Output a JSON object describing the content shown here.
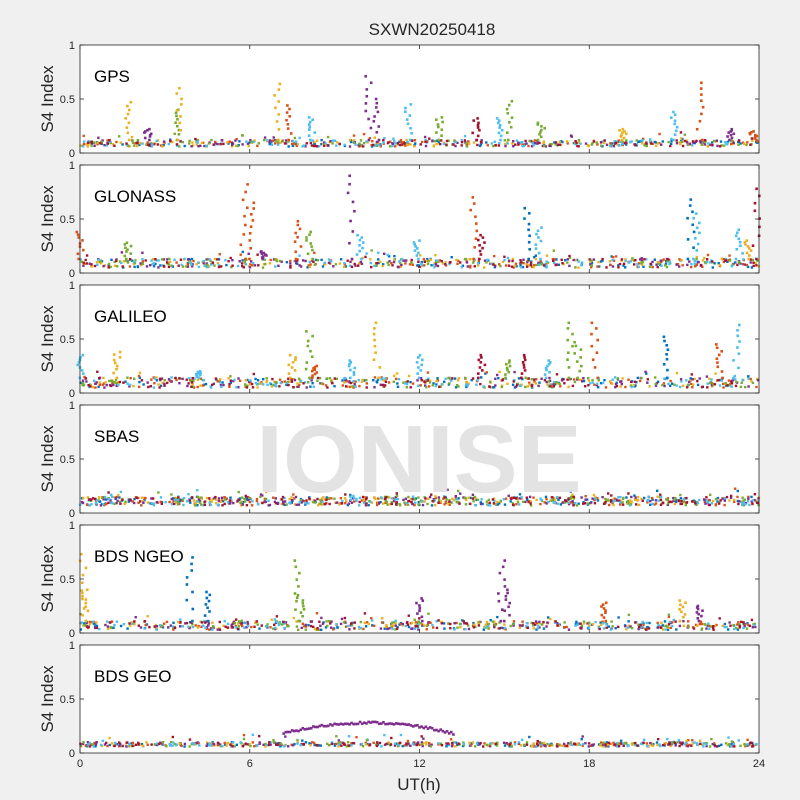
{
  "figure": {
    "title": "SXWN20250418",
    "watermark": "IONISE",
    "xlabel": "UT(h)",
    "xticks": [
      "0",
      "6",
      "12",
      "18",
      "24"
    ]
  },
  "colors": {
    "background": "#f0f0f0",
    "axes_face": "#ffffff",
    "axis_line": "#262626",
    "watermark": "#e0e0e0",
    "palette": [
      "#0072BD",
      "#D95319",
      "#EDB120",
      "#7E2F8E",
      "#77AC30",
      "#4DBEEE",
      "#A2142F"
    ]
  },
  "chart_data": [
    {
      "type": "scatter",
      "title": "GPS",
      "ylabel": "S4 Index",
      "xlim": [
        0,
        24
      ],
      "ylim": [
        0,
        1
      ],
      "yticks": [
        "0",
        "0.5",
        "1"
      ],
      "baseline": [
        0.06,
        0.12
      ],
      "spikes": [
        {
          "x": 1.7,
          "y": 0.47,
          "c": 2
        },
        {
          "x": 2.4,
          "y": 0.22,
          "c": 3
        },
        {
          "x": 3.4,
          "y": 0.4,
          "c": 4
        },
        {
          "x": 3.5,
          "y": 0.6,
          "c": 2
        },
        {
          "x": 7.0,
          "y": 0.64,
          "c": 2
        },
        {
          "x": 7.4,
          "y": 0.44,
          "c": 1
        },
        {
          "x": 8.2,
          "y": 0.33,
          "c": 5
        },
        {
          "x": 10.2,
          "y": 0.71,
          "c": 3
        },
        {
          "x": 10.5,
          "y": 0.5,
          "c": 3
        },
        {
          "x": 11.6,
          "y": 0.45,
          "c": 5
        },
        {
          "x": 12.7,
          "y": 0.33,
          "c": 4
        },
        {
          "x": 14.0,
          "y": 0.32,
          "c": 6
        },
        {
          "x": 14.8,
          "y": 0.32,
          "c": 5
        },
        {
          "x": 15.2,
          "y": 0.48,
          "c": 4
        },
        {
          "x": 16.3,
          "y": 0.28,
          "c": 4
        },
        {
          "x": 19.2,
          "y": 0.22,
          "c": 2
        },
        {
          "x": 21.0,
          "y": 0.38,
          "c": 5
        },
        {
          "x": 21.9,
          "y": 0.65,
          "c": 1
        },
        {
          "x": 23.0,
          "y": 0.22,
          "c": 3
        },
        {
          "x": 23.8,
          "y": 0.2,
          "c": 1
        }
      ]
    },
    {
      "type": "scatter",
      "title": "GLONASS",
      "ylabel": "S4 Index",
      "xlim": [
        0,
        24
      ],
      "ylim": [
        0,
        1
      ],
      "yticks": [
        "0",
        "0.5",
        "1"
      ],
      "baseline": [
        0.05,
        0.13
      ],
      "spikes": [
        {
          "x": 0.0,
          "y": 0.38,
          "c": 1
        },
        {
          "x": 1.7,
          "y": 0.28,
          "c": 4
        },
        {
          "x": 5.8,
          "y": 0.82,
          "c": 1
        },
        {
          "x": 6.1,
          "y": 0.65,
          "c": 1
        },
        {
          "x": 6.5,
          "y": 0.2,
          "c": 3
        },
        {
          "x": 7.7,
          "y": 0.48,
          "c": 1
        },
        {
          "x": 8.1,
          "y": 0.38,
          "c": 4
        },
        {
          "x": 9.6,
          "y": 0.9,
          "c": 3
        },
        {
          "x": 9.9,
          "y": 0.35,
          "c": 5
        },
        {
          "x": 11.9,
          "y": 0.3,
          "c": 5
        },
        {
          "x": 13.9,
          "y": 0.7,
          "c": 1
        },
        {
          "x": 14.2,
          "y": 0.35,
          "c": 6
        },
        {
          "x": 15.8,
          "y": 0.6,
          "c": 0
        },
        {
          "x": 16.2,
          "y": 0.42,
          "c": 5
        },
        {
          "x": 21.6,
          "y": 0.68,
          "c": 0
        },
        {
          "x": 21.8,
          "y": 0.55,
          "c": 5
        },
        {
          "x": 23.3,
          "y": 0.4,
          "c": 5
        },
        {
          "x": 23.6,
          "y": 0.3,
          "c": 2
        },
        {
          "x": 23.9,
          "y": 0.78,
          "c": 6
        }
      ]
    },
    {
      "type": "scatter",
      "title": "GALILEO",
      "ylabel": "S4 Index",
      "xlim": [
        0,
        24
      ],
      "ylim": [
        0,
        1
      ],
      "yticks": [
        "0",
        "0.5",
        "1"
      ],
      "baseline": [
        0.05,
        0.14
      ],
      "spikes": [
        {
          "x": 0.0,
          "y": 0.35,
          "c": 5
        },
        {
          "x": 1.3,
          "y": 0.38,
          "c": 2
        },
        {
          "x": 4.2,
          "y": 0.2,
          "c": 5
        },
        {
          "x": 7.5,
          "y": 0.35,
          "c": 2
        },
        {
          "x": 8.1,
          "y": 0.57,
          "c": 4
        },
        {
          "x": 8.3,
          "y": 0.25,
          "c": 1
        },
        {
          "x": 9.6,
          "y": 0.3,
          "c": 5
        },
        {
          "x": 10.5,
          "y": 0.65,
          "c": 2
        },
        {
          "x": 12.0,
          "y": 0.35,
          "c": 5
        },
        {
          "x": 14.2,
          "y": 0.35,
          "c": 6
        },
        {
          "x": 15.1,
          "y": 0.3,
          "c": 4
        },
        {
          "x": 15.7,
          "y": 0.35,
          "c": 6
        },
        {
          "x": 16.5,
          "y": 0.3,
          "c": 5
        },
        {
          "x": 17.3,
          "y": 0.65,
          "c": 4
        },
        {
          "x": 17.6,
          "y": 0.47,
          "c": 4
        },
        {
          "x": 18.2,
          "y": 0.65,
          "c": 1
        },
        {
          "x": 20.7,
          "y": 0.52,
          "c": 0
        },
        {
          "x": 22.6,
          "y": 0.45,
          "c": 1
        },
        {
          "x": 23.2,
          "y": 0.63,
          "c": 5
        }
      ]
    },
    {
      "type": "scatter",
      "title": "SBAS",
      "ylabel": "S4 Index",
      "xlim": [
        0,
        24
      ],
      "ylim": [
        0,
        1
      ],
      "yticks": [
        "0",
        "0.5",
        "1"
      ],
      "baseline": [
        0.07,
        0.15
      ],
      "spikes": []
    },
    {
      "type": "scatter",
      "title": "BDS NGEO",
      "ylabel": "S4 Index",
      "xlim": [
        0,
        24
      ],
      "ylim": [
        0,
        1
      ],
      "yticks": [
        "0",
        "0.5",
        "1"
      ],
      "baseline": [
        0.03,
        0.11
      ],
      "spikes": [
        {
          "x": 0.1,
          "y": 0.73,
          "c": 2
        },
        {
          "x": 0.2,
          "y": 0.4,
          "c": 2
        },
        {
          "x": 3.9,
          "y": 0.7,
          "c": 0
        },
        {
          "x": 4.5,
          "y": 0.38,
          "c": 0
        },
        {
          "x": 7.7,
          "y": 0.67,
          "c": 4
        },
        {
          "x": 7.8,
          "y": 0.35,
          "c": 4
        },
        {
          "x": 12.0,
          "y": 0.32,
          "c": 3
        },
        {
          "x": 14.9,
          "y": 0.67,
          "c": 3
        },
        {
          "x": 15.1,
          "y": 0.4,
          "c": 3
        },
        {
          "x": 18.5,
          "y": 0.28,
          "c": 1
        },
        {
          "x": 21.3,
          "y": 0.3,
          "c": 2
        },
        {
          "x": 21.9,
          "y": 0.25,
          "c": 3
        }
      ]
    },
    {
      "type": "scatter",
      "title": "BDS GEO",
      "ylabel": "S4 Index",
      "xlim": [
        0,
        24
      ],
      "ylim": [
        0,
        1
      ],
      "yticks": [
        "0",
        "0.5",
        "1"
      ],
      "baseline": [
        0.06,
        0.1
      ],
      "arc": {
        "x_start": 7.2,
        "x_end": 13.2,
        "y_peak": 0.28,
        "y_edge": 0.18,
        "c": 3
      },
      "spikes": []
    }
  ]
}
